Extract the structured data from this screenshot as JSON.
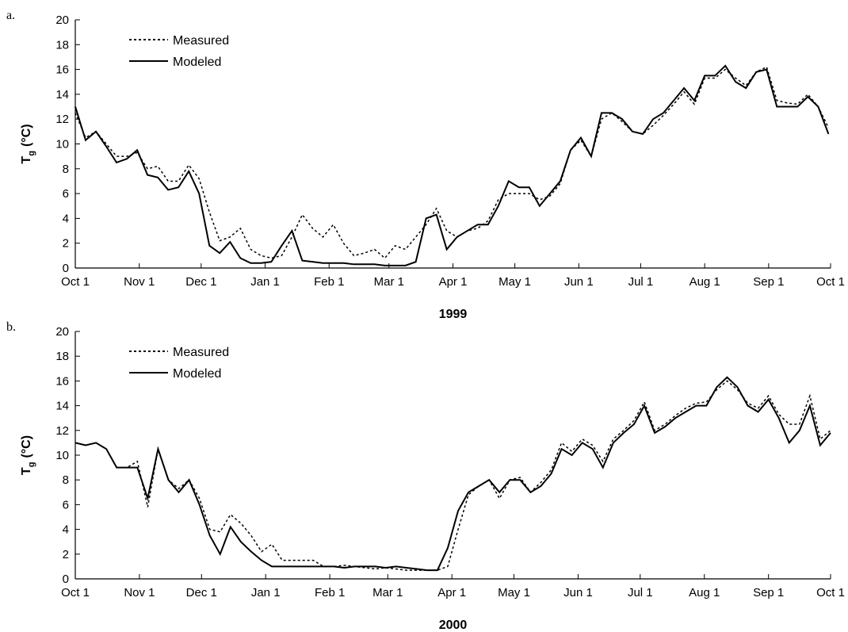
{
  "chart_data": [
    {
      "type": "line",
      "panel_label": "a.",
      "x_label": "1999",
      "y_label": "T",
      "y_label_subscript": "g",
      "y_label_unit": "(°C)",
      "xlim": [
        0,
        366
      ],
      "ylim": [
        0,
        20
      ],
      "yticks": [
        0,
        2,
        4,
        6,
        8,
        10,
        12,
        14,
        16,
        18,
        20
      ],
      "xticks": [
        {
          "value": 0,
          "label": "Oct 1"
        },
        {
          "value": 31,
          "label": "Nov 1"
        },
        {
          "value": 61,
          "label": "Dec 1"
        },
        {
          "value": 92,
          "label": "Jan 1"
        },
        {
          "value": 123,
          "label": "Feb 1"
        },
        {
          "value": 152,
          "label": "Mar 1"
        },
        {
          "value": 183,
          "label": "Apr 1"
        },
        {
          "value": 213,
          "label": "May 1"
        },
        {
          "value": 244,
          "label": "Jun 1"
        },
        {
          "value": 274,
          "label": "Jul 1"
        },
        {
          "value": 305,
          "label": "Aug 1"
        },
        {
          "value": 336,
          "label": "Sep 1"
        },
        {
          "value": 366,
          "label": "Oct 1"
        }
      ],
      "legend": "upper left",
      "x": [
        0,
        5,
        10,
        15,
        20,
        25,
        30,
        35,
        40,
        45,
        50,
        55,
        60,
        65,
        70,
        75,
        80,
        85,
        90,
        95,
        100,
        105,
        110,
        115,
        120,
        125,
        130,
        135,
        140,
        145,
        150,
        155,
        160,
        165,
        170,
        175,
        180,
        185,
        190,
        195,
        200,
        205,
        210,
        215,
        220,
        225,
        230,
        235,
        240,
        245,
        250,
        255,
        260,
        265,
        270,
        275,
        280,
        285,
        290,
        295,
        300,
        305,
        310,
        315,
        320,
        325,
        330,
        335,
        340,
        345,
        350,
        355,
        360,
        365
      ],
      "series": [
        {
          "name": "Measured",
          "color": "#000000",
          "style": "dotted",
          "values": [
            12.5,
            10.5,
            11,
            10,
            9,
            9,
            9.3,
            8,
            8.2,
            7,
            7,
            8.3,
            7.2,
            4.5,
            2.2,
            2.5,
            3.2,
            1.5,
            1,
            0.8,
            1,
            2.5,
            4.3,
            3.2,
            2.5,
            3.5,
            2,
            1,
            1.2,
            1.5,
            0.8,
            1.8,
            1.5,
            2.5,
            3.5,
            4.8,
            3,
            2.5,
            3,
            3.2,
            3.8,
            5.5,
            6,
            6,
            6,
            5.5,
            5.8,
            6.8,
            9.5,
            10.3,
            9,
            12,
            12.5,
            11.8,
            11,
            10.8,
            11.5,
            12.3,
            13.2,
            14.2,
            13.2,
            15.3,
            15.3,
            16,
            15.3,
            14.7,
            15.8,
            16.2,
            13.5,
            13.3,
            13.2,
            14,
            13,
            11.3
          ]
        },
        {
          "name": "Modeled",
          "color": "#000000",
          "style": "solid",
          "values": [
            13,
            10.3,
            11,
            9.8,
            8.5,
            8.8,
            9.5,
            7.5,
            7.3,
            6.3,
            6.5,
            7.8,
            6,
            1.8,
            1.2,
            2.1,
            0.8,
            0.4,
            0.4,
            0.5,
            1.8,
            3,
            0.6,
            0.5,
            0.4,
            0.4,
            0.4,
            0.3,
            0.3,
            0.3,
            0.2,
            0.2,
            0.2,
            0.5,
            4,
            4.3,
            1.5,
            2.5,
            3,
            3.5,
            3.5,
            5,
            7,
            6.5,
            6.5,
            5,
            6,
            7,
            9.5,
            10.5,
            9,
            12.5,
            12.5,
            12,
            11,
            10.8,
            12,
            12.5,
            13.5,
            14.5,
            13.5,
            15.5,
            15.5,
            16.3,
            15,
            14.5,
            15.8,
            16,
            13,
            13,
            13,
            13.8,
            13,
            10.8
          ]
        }
      ]
    },
    {
      "type": "line",
      "panel_label": "b.",
      "x_label": "2000",
      "y_label": "T",
      "y_label_subscript": "g",
      "y_label_unit": "(°C)",
      "xlim": [
        0,
        365
      ],
      "ylim": [
        0,
        20
      ],
      "yticks": [
        0,
        2,
        4,
        6,
        8,
        10,
        12,
        14,
        16,
        18,
        20
      ],
      "xticks": [
        {
          "value": 0,
          "label": "Oct 1"
        },
        {
          "value": 31,
          "label": "Nov 1"
        },
        {
          "value": 61,
          "label": "Dec 1"
        },
        {
          "value": 92,
          "label": "Jan 1"
        },
        {
          "value": 123,
          "label": "Feb 1"
        },
        {
          "value": 151,
          "label": "Mar 1"
        },
        {
          "value": 182,
          "label": "Apr 1"
        },
        {
          "value": 212,
          "label": "May 1"
        },
        {
          "value": 243,
          "label": "Jun 1"
        },
        {
          "value": 273,
          "label": "Jul 1"
        },
        {
          "value": 304,
          "label": "Aug 1"
        },
        {
          "value": 335,
          "label": "Sep 1"
        },
        {
          "value": 365,
          "label": "Oct 1"
        }
      ],
      "legend": "upper left",
      "x": [
        0,
        5,
        10,
        15,
        20,
        25,
        30,
        35,
        40,
        45,
        50,
        55,
        60,
        65,
        70,
        75,
        80,
        85,
        90,
        95,
        100,
        105,
        110,
        115,
        120,
        125,
        130,
        135,
        140,
        145,
        150,
        155,
        160,
        165,
        170,
        175,
        180,
        185,
        190,
        195,
        200,
        205,
        210,
        215,
        220,
        225,
        230,
        235,
        240,
        245,
        250,
        255,
        260,
        265,
        270,
        275,
        280,
        285,
        290,
        295,
        300,
        305,
        310,
        315,
        320,
        325,
        330,
        335,
        340,
        345,
        350,
        355,
        360,
        365
      ],
      "series": [
        {
          "name": "Measured",
          "color": "#000000",
          "style": "dotted",
          "values": [
            11,
            10.8,
            11,
            10.5,
            9,
            9,
            9.5,
            5.8,
            10.5,
            8,
            7.3,
            8,
            6.5,
            4,
            3.8,
            5.2,
            4.5,
            3.5,
            2.2,
            2.8,
            1.5,
            1.5,
            1.5,
            1.5,
            1,
            1,
            1.1,
            1,
            0.9,
            0.8,
            0.9,
            0.8,
            0.7,
            0.7,
            0.7,
            0.7,
            1,
            4,
            6.8,
            7.5,
            8,
            6.5,
            8,
            8.2,
            7,
            7.8,
            8.8,
            11,
            10.3,
            11.3,
            10.8,
            9.5,
            11.3,
            12,
            12.8,
            14.3,
            12,
            12.5,
            13.2,
            13.8,
            14.2,
            14.3,
            15.3,
            16,
            15.3,
            14.2,
            13.8,
            14.8,
            13.3,
            12.5,
            12.5,
            14.8,
            11.3,
            12
          ]
        },
        {
          "name": "Modeled",
          "color": "#000000",
          "style": "solid",
          "values": [
            11,
            10.8,
            11,
            10.5,
            9,
            9,
            9,
            6.5,
            10.5,
            8,
            7,
            8,
            6,
            3.5,
            2,
            4.2,
            3,
            2.2,
            1.5,
            1,
            1,
            1,
            1,
            1,
            1,
            1,
            0.9,
            1,
            1,
            1,
            0.9,
            1,
            0.9,
            0.8,
            0.7,
            0.7,
            2.5,
            5.5,
            7,
            7.5,
            8,
            7,
            8,
            8,
            7,
            7.5,
            8.5,
            10.5,
            10,
            11,
            10.5,
            9,
            11,
            11.8,
            12.5,
            14,
            11.8,
            12.3,
            13,
            13.5,
            14,
            14,
            15.5,
            16.3,
            15.5,
            14,
            13.5,
            14.5,
            13,
            11,
            12,
            14,
            10.8,
            11.8
          ]
        }
      ]
    }
  ]
}
